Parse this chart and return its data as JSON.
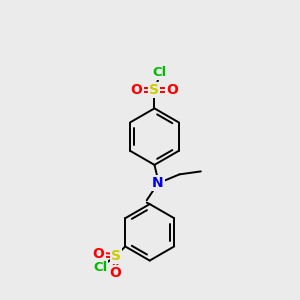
{
  "bg_color": "#ebebeb",
  "atom_colors": {
    "C": "#000000",
    "N": "#0000ee",
    "S": "#cccc00",
    "O": "#ff0000",
    "Cl": "#00bb00",
    "H": "#000000"
  },
  "bond_color": "#000000",
  "bond_width": 1.4
}
